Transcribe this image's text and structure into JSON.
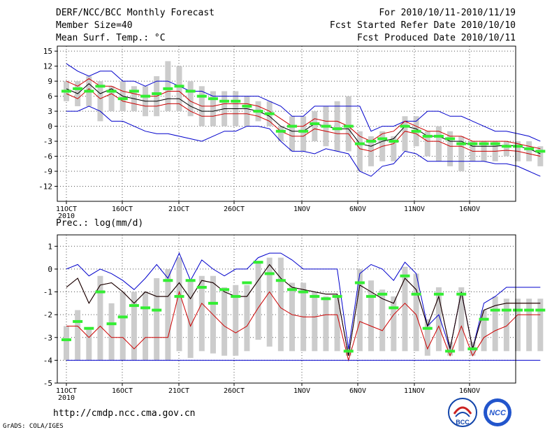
{
  "header": {
    "title": "DERF/NCC/BCC Monthly Forecast",
    "member_size": "Member Size=40",
    "variable": "Mean Surf. Temp.: °C",
    "period": "For 2010/10/11-2010/11/19",
    "started": "Fcst Started Refer Date 2010/10/10",
    "produced": "Fcst Produced Date 2010/10/11"
  },
  "footer": {
    "url": "http://cmdp.ncc.cma.gov.cn",
    "grads": "GrADS: COLA/IGES",
    "logo_left_text": "BCC",
    "logo_right_text": "NCC"
  },
  "colors": {
    "envelope": "#0000cc",
    "spread": "#cc0000",
    "mean": "#000000",
    "member": "#33ee33",
    "bar": "#cccccc",
    "grid": "#555555"
  },
  "chart_data": [
    {
      "type": "line",
      "title": "Mean Surf. Temp.: °C",
      "x_tick_labels": [
        "11OCT",
        "16OCT",
        "21OCT",
        "26OCT",
        "1NOV",
        "6NOV",
        "11NOV",
        "16NOV"
      ],
      "year_label": "2010",
      "ylim": [
        -15,
        16
      ],
      "y_ticks": [
        -12,
        -9,
        -6,
        -3,
        0,
        3,
        6,
        9,
        12,
        15
      ],
      "series": [
        {
          "name": "max",
          "values": [
            12.5,
            11,
            10,
            11,
            11,
            9,
            9,
            8,
            9,
            9,
            8,
            7,
            7,
            6,
            6,
            6,
            6,
            6,
            5,
            4,
            2,
            2,
            4,
            4,
            4,
            4,
            4,
            -1,
            0,
            0,
            1,
            1,
            3,
            3,
            2,
            2,
            1,
            0,
            -1,
            -1,
            -1.5,
            -2,
            -3
          ]
        },
        {
          "name": "upper",
          "values": [
            9,
            8,
            9.5,
            8,
            8,
            7,
            6.5,
            6,
            6,
            7,
            7,
            5,
            4,
            4,
            4.5,
            4.5,
            4.5,
            4,
            3,
            1.5,
            0,
            0,
            1.5,
            1,
            1,
            0,
            -2,
            -3,
            -1.5,
            -1,
            1,
            0,
            -1,
            -1,
            -2,
            -2,
            -3,
            -3,
            -3,
            -3,
            -3.5,
            -4,
            -4.5
          ]
        },
        {
          "name": "mean",
          "values": [
            7.5,
            6.5,
            8.5,
            6.5,
            7.5,
            6,
            5.5,
            5,
            5,
            5.5,
            5.5,
            4,
            3,
            3,
            3.5,
            3.5,
            3.5,
            3,
            2,
            0,
            -1,
            -1,
            0.5,
            0,
            -0.5,
            -0.5,
            -3.5,
            -4,
            -3,
            -2.5,
            0,
            -0.5,
            -2,
            -2,
            -3,
            -3,
            -4,
            -4,
            -4,
            -3.8,
            -4,
            -4.5,
            -5.5
          ]
        },
        {
          "name": "lower",
          "values": [
            6.5,
            5.5,
            7.5,
            5.5,
            6.5,
            5,
            4.5,
            4,
            4,
            4.5,
            4.5,
            3,
            2,
            2,
            2.5,
            2.5,
            2.5,
            2,
            1,
            -1,
            -2,
            -2,
            -0.5,
            -1,
            -1.5,
            -1.5,
            -4.5,
            -5,
            -4,
            -3.5,
            -1,
            -1.5,
            -3,
            -3,
            -4,
            -4,
            -5,
            -5,
            -5,
            -4.8,
            -5,
            -5.5,
            -6
          ]
        },
        {
          "name": "min",
          "values": [
            3,
            3,
            4,
            3,
            1,
            1,
            0,
            -1,
            -1.5,
            -1.5,
            -2,
            -2.5,
            -3,
            -2,
            -1,
            -1,
            0,
            0,
            -0.5,
            -3,
            -5,
            -5,
            -5.5,
            -4.5,
            -5,
            -5.5,
            -9,
            -10,
            -8,
            -7.5,
            -5,
            -5.5,
            -7,
            -7,
            -7,
            -7,
            -7,
            -7,
            -7.5,
            -7.5,
            -8,
            -9,
            -10
          ]
        },
        {
          "name": "member",
          "values": [
            7,
            7.5,
            7,
            8,
            7,
            5.5,
            7,
            6,
            6.5,
            7.5,
            8,
            7,
            6,
            5.5,
            5,
            5,
            4,
            3,
            2.5,
            -1,
            0,
            -1,
            0.5,
            0,
            -0.5,
            0,
            -3.5,
            -3,
            -2.5,
            -3,
            0,
            -1,
            -2,
            -2,
            -2.5,
            -3.5,
            -3.5,
            -3.5,
            -3.5,
            -4,
            -4,
            -4.5,
            -5
          ]
        }
      ],
      "bars": {
        "top": [
          9,
          9,
          10,
          9,
          8,
          9,
          8,
          8,
          10,
          13,
          12,
          9,
          8,
          7,
          7,
          7,
          6,
          5,
          5,
          0,
          2,
          2,
          3,
          4,
          5,
          6,
          -1,
          -2,
          -1,
          -2,
          2,
          2,
          -1,
          0,
          -1,
          -2,
          -3,
          -3,
          -3,
          -3,
          -3,
          -3,
          -4
        ],
        "bottom": [
          5,
          4,
          4,
          1,
          3,
          3,
          3,
          2,
          2,
          3,
          3,
          2,
          0,
          0,
          0,
          0,
          0,
          1,
          0,
          -3,
          -5,
          -5,
          -3,
          -4,
          -5,
          -5,
          -9,
          -8,
          -7,
          -7,
          -5,
          -4,
          -6,
          -7,
          -8,
          -9,
          -7,
          -7,
          -7,
          -6,
          -7,
          -7,
          -8
        ]
      }
    },
    {
      "type": "line",
      "title": "Prec.: log(mm/d)",
      "x_tick_labels": [
        "11OCT",
        "16OCT",
        "21OCT",
        "26OCT",
        "1NOV",
        "6NOV",
        "11NOV",
        "16NOV"
      ],
      "year_label": "2010",
      "ylim": [
        -5,
        1.5
      ],
      "y_ticks": [
        -5,
        -4,
        -3,
        -2,
        -1,
        0,
        1
      ],
      "series": [
        {
          "name": "max",
          "values": [
            0,
            0.2,
            -0.3,
            0,
            -0.2,
            -0.5,
            -0.9,
            -0.4,
            0.2,
            -0.4,
            0.7,
            -0.5,
            0.4,
            0,
            -0.3,
            0,
            0,
            0.5,
            0.7,
            0.7,
            0.4,
            0,
            0,
            0,
            0,
            -3.5,
            -0.2,
            0.2,
            0,
            -0.5,
            0.3,
            -0.2,
            -2.5,
            -2,
            -3.5,
            -1,
            -3.5,
            -1.5,
            -1.2,
            -0.8,
            -0.8,
            -0.8,
            -0.8
          ]
        },
        {
          "name": "upper",
          "values": [
            -0.8,
            -0.4,
            -1.5,
            -0.7,
            -0.6,
            -1,
            -1.5,
            -1,
            -1.2,
            -1.2,
            -0.6,
            -1.3,
            -0.5,
            -0.6,
            -1,
            -1.2,
            -1.2,
            -0.5,
            0.2,
            -0.4,
            -0.8,
            -0.9,
            -1,
            -1.1,
            -1.1,
            -3.8,
            -0.7,
            -1,
            -1.3,
            -1.5,
            -0.4,
            -0.9,
            -2.5,
            -1.2,
            -3.5,
            -1,
            -3.5,
            -1.8,
            -1.6,
            -1.5,
            -1.5,
            -1.5,
            -1.5
          ]
        },
        {
          "name": "mean",
          "values": [
            -0.8,
            -0.4,
            -1.5,
            -0.7,
            -0.6,
            -1,
            -1.5,
            -1,
            -1.2,
            -1.2,
            -0.6,
            -1.3,
            -0.5,
            -0.6,
            -1,
            -1.2,
            -1.2,
            -0.5,
            0.2,
            -0.4,
            -0.8,
            -0.9,
            -1,
            -1.1,
            -1.1,
            -3.8,
            -0.7,
            -1,
            -1.3,
            -1.5,
            -0.4,
            -0.9,
            -2.5,
            -1.2,
            -3.5,
            -1,
            -3.5,
            -1.8,
            -1.6,
            -1.5,
            -1.5,
            -1.5,
            -1.5
          ]
        },
        {
          "name": "lower",
          "values": [
            -2.5,
            -2.5,
            -3,
            -2.5,
            -3,
            -3,
            -3.5,
            -3,
            -3,
            -3,
            -1,
            -2.5,
            -1.5,
            -2,
            -2.5,
            -2.8,
            -2.5,
            -1.7,
            -1,
            -1.7,
            -2,
            -2.1,
            -2.1,
            -2,
            -2,
            -4,
            -2.3,
            -2.5,
            -2.7,
            -2,
            -1.5,
            -2,
            -3.5,
            -2.5,
            -3.8,
            -2.5,
            -3.8,
            -3,
            -2.7,
            -2.5,
            -2,
            -2,
            -2
          ]
        },
        {
          "name": "min",
          "values": [
            -4,
            -4,
            -4,
            -4,
            -4,
            -4,
            -4,
            -4,
            -4,
            -4,
            -4,
            -4,
            -4,
            -4,
            -4,
            -4,
            -4,
            -4,
            -4,
            -4,
            -4,
            -4,
            -4,
            -4,
            -4,
            -4,
            -4,
            -4,
            -4,
            -4,
            -4,
            -4,
            -4,
            -4,
            -4,
            -4,
            -4,
            -4,
            -4,
            -4,
            -4,
            -4,
            -4
          ]
        },
        {
          "name": "member",
          "values": [
            -3.1,
            -2.3,
            -2.6,
            -1,
            -2.4,
            -2.1,
            -1.6,
            -1.7,
            -1.8,
            -0.5,
            -1.2,
            -0.5,
            -0.8,
            -1.5,
            -0.9,
            -1.2,
            -0.6,
            0.3,
            -0.2,
            -0.5,
            -0.9,
            -1,
            -1.2,
            -1.3,
            -1.2,
            -3.6,
            -0.6,
            -1.2,
            -1.1,
            -1.7,
            -0.3,
            -1.1,
            -2.6,
            -1.1,
            -3.6,
            -1.1,
            -3.5,
            -2.2,
            -1.8,
            -1.8,
            -1.8,
            -1.8,
            -1.8
          ]
        }
      ],
      "bars": {
        "top": [
          -2.5,
          -1.8,
          -2.6,
          -0.3,
          -1.5,
          -1,
          -1,
          -1,
          -0.4,
          0,
          0.5,
          -0.5,
          -0.3,
          -0.3,
          -0.8,
          -0.7,
          -0.7,
          0.3,
          0.5,
          0.5,
          -0.6,
          -0.6,
          -1,
          -1.2,
          -1.2,
          -3.4,
          0,
          -0.5,
          -0.9,
          -1.2,
          0.1,
          -0.2,
          -2.2,
          -0.8,
          -3.2,
          -0.8,
          -3.2,
          -1.8,
          -1.2,
          -1.3,
          -1.3,
          -1.3,
          -1.3
        ],
        "bottom": [
          -4,
          -4,
          -4,
          -4,
          -4,
          -4,
          -4,
          -4,
          -4,
          -4,
          -3.6,
          -3.9,
          -3.6,
          -3.7,
          -3.8,
          -3.8,
          -3.6,
          -3.1,
          -3.4,
          -3.6,
          -3.6,
          -3.6,
          -3.6,
          -3.6,
          -3.6,
          -3.8,
          -3.6,
          -3.6,
          -3.6,
          -3.6,
          -3.6,
          -3.6,
          -3.8,
          -3.6,
          -3.8,
          -3.6,
          -3.8,
          -3.6,
          -3.6,
          -3.6,
          -3.6,
          -3.6,
          -3.6
        ]
      }
    }
  ]
}
